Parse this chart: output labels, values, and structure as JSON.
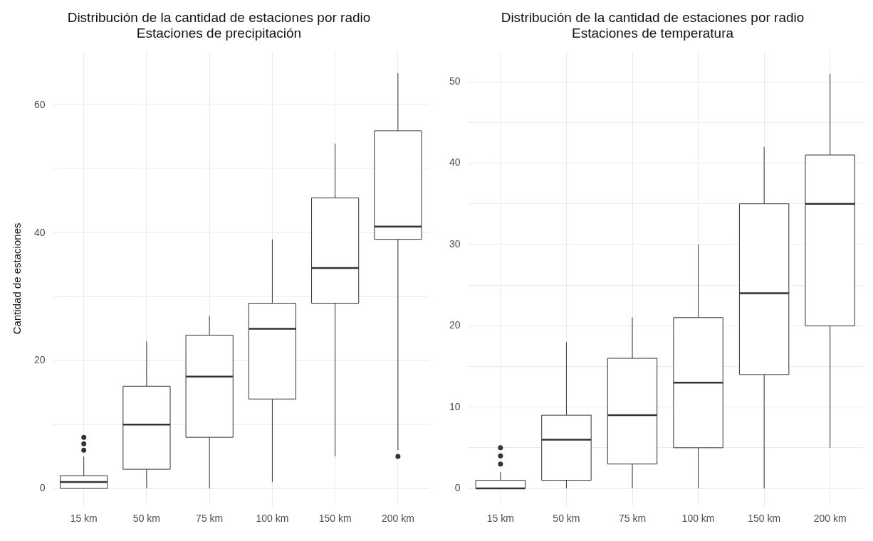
{
  "chart_data": [
    {
      "type": "box",
      "title": "Distribución de la cantidad de estaciones por radio",
      "subtitle": "Estaciones de precipitación",
      "ylabel": "Cantidad de estaciones",
      "categories": [
        "15 km",
        "50 km",
        "75 km",
        "100 km",
        "150 km",
        "200 km"
      ],
      "boxes": [
        {
          "low": 0,
          "q1": 0,
          "median": 1,
          "q3": 2,
          "high": 5,
          "outliers": [
            6,
            7,
            8
          ]
        },
        {
          "low": 0,
          "q1": 3,
          "median": 10,
          "q3": 16,
          "high": 23
        },
        {
          "low": 0,
          "q1": 8,
          "median": 17.5,
          "q3": 24,
          "high": 27
        },
        {
          "low": 1,
          "q1": 14,
          "median": 25,
          "q3": 29,
          "high": 39
        },
        {
          "low": 5,
          "q1": 29,
          "median": 34.5,
          "q3": 45.5,
          "high": 54
        },
        {
          "low": 6,
          "q1": 39,
          "median": 41,
          "q3": 56,
          "high": 65,
          "outliers": [
            5
          ]
        }
      ],
      "ylim": [
        -2.8,
        68.5
      ],
      "yticks": [
        0,
        {
          "value": 10,
          "label": null
        },
        20,
        {
          "value": 30,
          "label": null
        },
        40,
        {
          "value": 50,
          "label": null
        },
        60
      ],
      "grid": true
    },
    {
      "type": "box",
      "title": "Distribución de la cantidad de estaciones por radio",
      "subtitle": "Estaciones de temperatura",
      "categories": [
        "15 km",
        "50 km",
        "75 km",
        "100 km",
        "150 km",
        "200 km"
      ],
      "boxes": [
        {
          "low": 0,
          "q1": 0,
          "median": 0,
          "q3": 1,
          "high": 2,
          "outliers": [
            3,
            4,
            5
          ]
        },
        {
          "low": 0,
          "q1": 1,
          "median": 6,
          "q3": 9,
          "high": 18
        },
        {
          "low": 0,
          "q1": 3,
          "median": 9,
          "q3": 16,
          "high": 21
        },
        {
          "low": 0,
          "q1": 5,
          "median": 13,
          "q3": 21,
          "high": 30
        },
        {
          "low": 0,
          "q1": 14,
          "median": 24,
          "q3": 35,
          "high": 42
        },
        {
          "low": 5,
          "q1": 20,
          "median": 35,
          "q3": 41,
          "high": 51
        }
      ],
      "ylim": [
        -2.2,
        53.8
      ],
      "yticks": [
        0,
        {
          "value": 5,
          "label": null
        },
        10,
        {
          "value": 15,
          "label": null
        },
        20,
        {
          "value": 25,
          "label": null
        },
        30,
        {
          "value": 35,
          "label": null
        },
        40,
        {
          "value": 45,
          "label": null
        },
        50
      ],
      "grid": true
    }
  ]
}
